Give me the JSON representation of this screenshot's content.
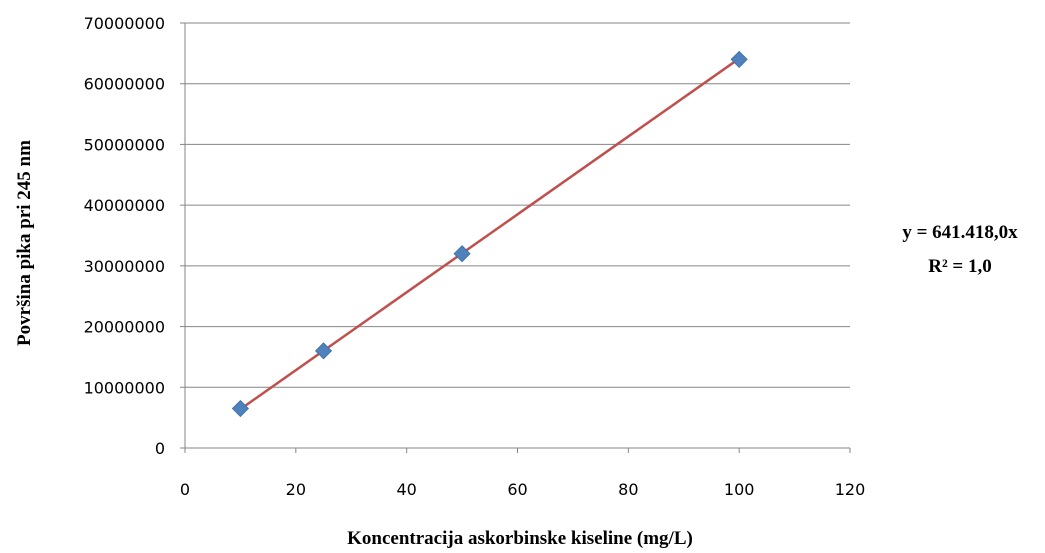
{
  "chart_data": {
    "type": "scatter",
    "title": "",
    "xlabel": "Koncentracija askorbinske kiseline (mg/L)",
    "ylabel": "Površina pika pri 245 nm",
    "xlim": [
      0,
      120
    ],
    "ylim": [
      0,
      70000000
    ],
    "xticks": [
      "0",
      "20",
      "40",
      "60",
      "80",
      "100",
      "120"
    ],
    "yticks": [
      "0",
      "10000000",
      "20000000",
      "30000000",
      "40000000",
      "50000000",
      "60000000",
      "70000000"
    ],
    "grid": "horizontal",
    "series": [
      {
        "x": [
          10,
          25,
          50,
          100
        ],
        "y": [
          6500000,
          16000000,
          32000000,
          64000000
        ],
        "marker": "diamond",
        "color": "#4f81bd"
      }
    ],
    "trendline": {
      "type": "linear",
      "x_range": [
        10,
        100
      ],
      "y_range": [
        6400000,
        64141800
      ],
      "color": "#c0504d",
      "equation": "y = 641.418,0x",
      "r_squared": "R² = 1,0"
    }
  }
}
